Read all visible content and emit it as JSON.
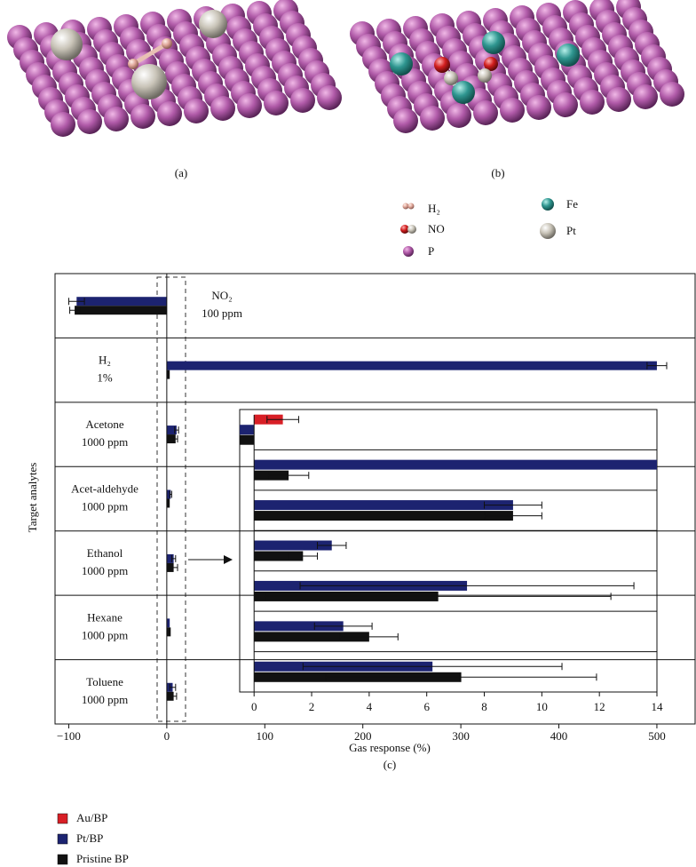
{
  "panels": {
    "a": "(a)",
    "b": "(b)",
    "c": "(c)"
  },
  "molecule_legend": [
    "H₂",
    "NO",
    "P",
    "Fe",
    "Pt"
  ],
  "chart_data": [
    {
      "type": "bar",
      "orientation": "horizontal",
      "xlabel": "Gas response (%)",
      "ylabel": "Target analytes",
      "categories": [
        "NO₂",
        "H₂",
        "Acetone",
        "Acet-aldehyde",
        "Ethanol",
        "Hexane",
        "Toluene"
      ],
      "concentrations": [
        "100 ppm",
        "1%",
        "1000 ppm",
        "1000 ppm",
        "1000 ppm",
        "1000 ppm",
        "1000 ppm"
      ],
      "series": [
        {
          "color": "#1c2370",
          "values": [
            -92,
            500,
            10,
            4,
            7,
            3,
            6
          ],
          "errors": [
            8,
            10,
            2,
            1,
            2,
            null,
            3
          ]
        },
        {
          "color": "#111111",
          "values": [
            -94,
            3,
            9,
            3,
            7,
            4,
            7
          ],
          "errors": [
            5,
            null,
            2,
            null,
            4,
            null,
            3
          ]
        }
      ],
      "xlim": [
        -114,
        539
      ],
      "xticks": [
        {
          "value": -100,
          "label": "−100"
        },
        0,
        100,
        200,
        300,
        400,
        500
      ]
    },
    {
      "type": "bar",
      "orientation": "horizontal",
      "categories": [
        null,
        null,
        null,
        null,
        null,
        null,
        null
      ],
      "series": [
        {
          "name": "Au/BP",
          "color": "#d81f26",
          "values": [
            1.0,
            null,
            null,
            null,
            null,
            null,
            null
          ],
          "errors": [
            0.55,
            null,
            null,
            null,
            null,
            null,
            null
          ]
        },
        {
          "name": "Pt/BP",
          "color": "#1c2370",
          "values": [
            -0.5,
            14,
            9.0,
            2.7,
            7.4,
            3.1,
            6.2
          ],
          "errors": [
            null,
            null,
            1.0,
            0.5,
            5.8,
            1.0,
            4.5
          ]
        },
        {
          "name": "Pristine BP",
          "color": "#111111",
          "values": [
            -0.5,
            1.2,
            9.0,
            1.7,
            6.4,
            4.0,
            7.2
          ],
          "errors": [
            null,
            0.7,
            1.0,
            0.5,
            6.0,
            1.0,
            4.7
          ]
        }
      ],
      "xlim": [
        -0.5,
        14
      ],
      "xticks": [
        0,
        2,
        4,
        6,
        8,
        10,
        12,
        14
      ]
    }
  ]
}
